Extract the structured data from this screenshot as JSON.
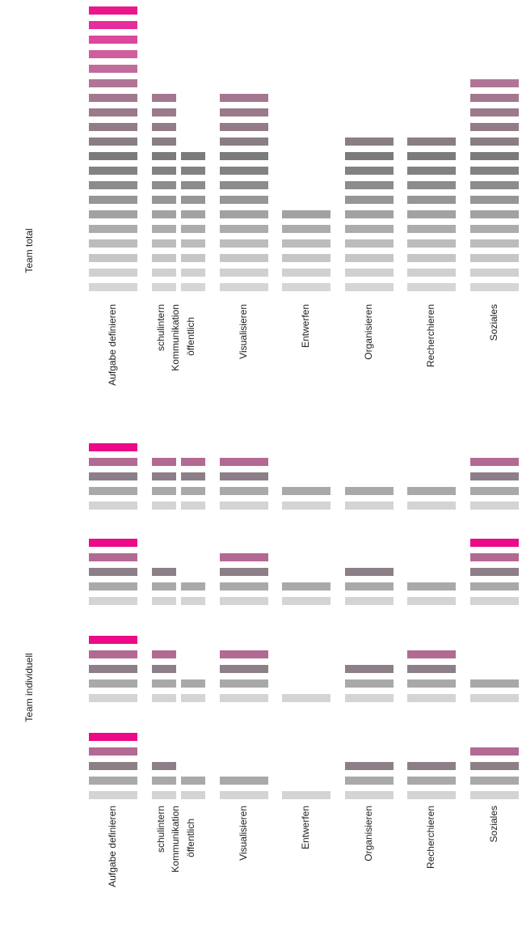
{
  "chart_data": [
    {
      "type": "segmented-bar",
      "title": "Team total",
      "categories": [
        "Aufgabe definieren",
        "schulintern",
        "öffentlich",
        "Visualisieren",
        "Entwerfen",
        "Organisieren",
        "Recherchieren",
        "Soziales"
      ],
      "category_group": "Kommunikation",
      "values": [
        20,
        14,
        10,
        14,
        6,
        11,
        11,
        15
      ],
      "level_colors": [
        "#d6d6d6",
        "#d0d0d0",
        "#c6c6c6",
        "#bcbcbc",
        "#acacac",
        "#a2a2a2",
        "#969696",
        "#8c8c8c",
        "#828282",
        "#7b7b7b",
        "#8a7e85",
        "#937b87",
        "#9a7a8b",
        "#a3788f",
        "#b07596",
        "#c06c9b",
        "#d05e9f",
        "#dc489d",
        "#e62f9a",
        "#ec168c"
      ]
    },
    {
      "type": "segmented-bar",
      "title": "Team individuell",
      "categories": [
        "Aufgabe definieren",
        "schulintern",
        "öffentlich",
        "Visualisieren",
        "Entwerfen",
        "Organisieren",
        "Recherchieren",
        "Soziales"
      ],
      "category_group": "Kommunikation",
      "series": [
        {
          "values": [
            5,
            4,
            4,
            4,
            2,
            2,
            2,
            4
          ]
        },
        {
          "values": [
            5,
            3,
            2,
            4,
            2,
            3,
            2,
            5
          ]
        },
        {
          "values": [
            5,
            4,
            2,
            4,
            1,
            3,
            4,
            2
          ]
        },
        {
          "values": [
            5,
            3,
            2,
            2,
            1,
            3,
            3,
            4
          ]
        }
      ],
      "level_colors": [
        "#d4d4d4",
        "#a9a9a9",
        "#8d7f87",
        "#b26a92",
        "#ec0a88"
      ]
    }
  ]
}
